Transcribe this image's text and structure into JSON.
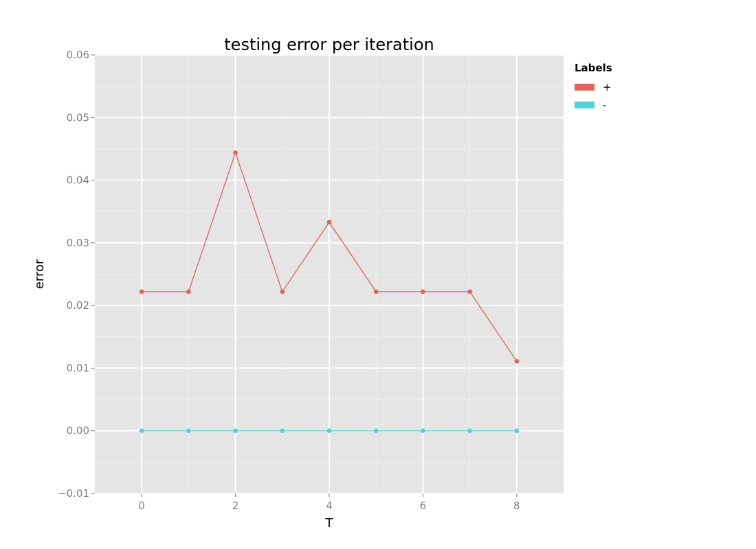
{
  "chart_data": {
    "type": "line",
    "title": "testing error per iteration",
    "xlabel": "T",
    "ylabel": "error",
    "xlim": [
      -1,
      9
    ],
    "ylim": [
      -0.01,
      0.06
    ],
    "xticks": [
      0,
      2,
      4,
      6,
      8
    ],
    "xtick_labels": [
      "0",
      "2",
      "4",
      "6",
      "8"
    ],
    "yticks": [
      -0.01,
      0.0,
      0.01,
      0.02,
      0.03,
      0.04,
      0.05,
      0.06
    ],
    "ytick_labels": [
      "−0.01",
      "0.00",
      "0.01",
      "0.02",
      "0.03",
      "0.04",
      "0.05",
      "0.06"
    ],
    "grid": true,
    "legend": {
      "title": "Labels",
      "placement": "right"
    },
    "x": [
      0,
      1,
      2,
      3,
      4,
      5,
      6,
      7,
      8
    ],
    "series": [
      {
        "name": "+",
        "color": "#e0625a",
        "values": [
          0.0222,
          0.0222,
          0.0444,
          0.0222,
          0.0333,
          0.0222,
          0.0222,
          0.0222,
          0.0111
        ]
      },
      {
        "name": "-",
        "color": "#56cfd9",
        "values": [
          0.0,
          0.0,
          0.0,
          0.0,
          0.0,
          0.0,
          0.0,
          0.0,
          0.0
        ]
      }
    ],
    "panel_color": "#e5e5e5",
    "grid_color": "#ffffff"
  }
}
